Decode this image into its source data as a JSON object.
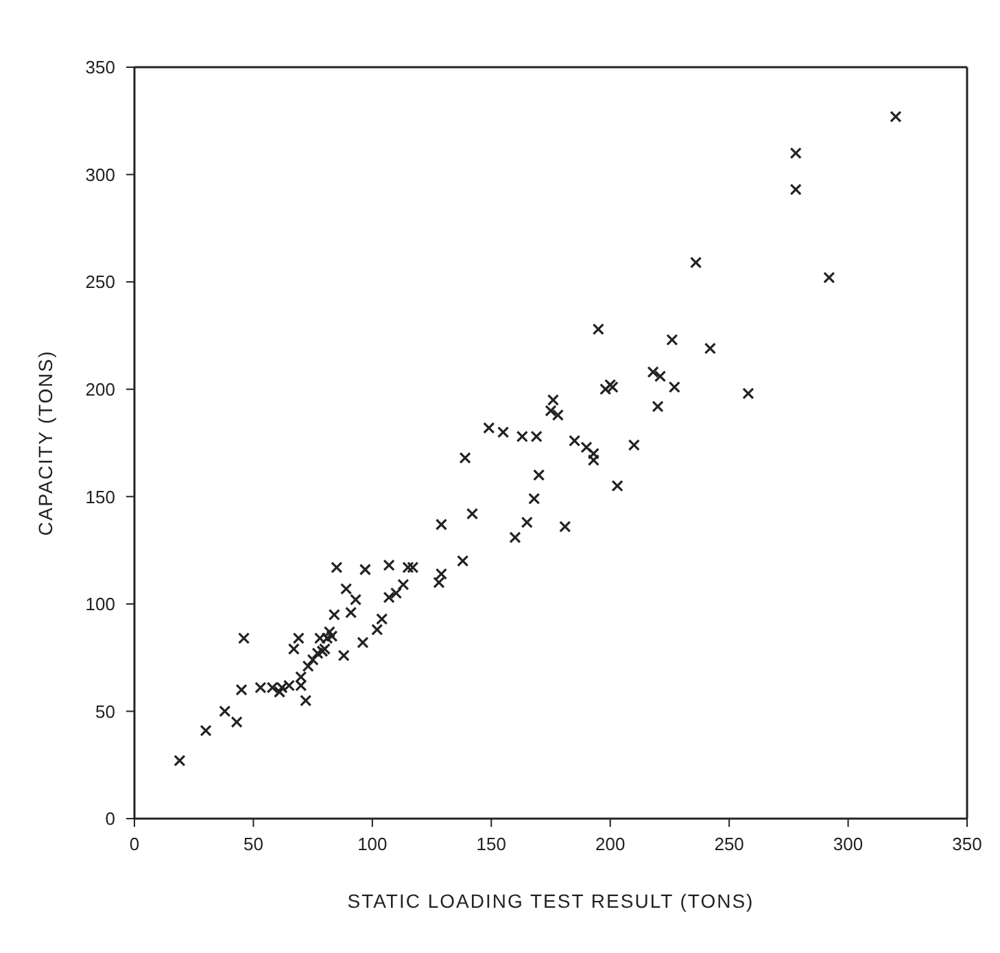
{
  "chart_data": {
    "type": "scatter",
    "xlabel": "STATIC LOADING TEST RESULT (TONS)",
    "ylabel": "CAPACITY (TONS)",
    "xlim": [
      0,
      350
    ],
    "ylim": [
      0,
      350
    ],
    "xticks": [
      0,
      50,
      100,
      150,
      200,
      250,
      300,
      350
    ],
    "yticks": [
      0,
      50,
      100,
      150,
      200,
      250,
      300,
      350
    ],
    "grid": false,
    "marker": "cross",
    "x": [
      19,
      30,
      38,
      43,
      45,
      46,
      53,
      58,
      61,
      62,
      65,
      67,
      69,
      70,
      70,
      72,
      73,
      75,
      77,
      78,
      79,
      80,
      81,
      82,
      83,
      84,
      85,
      88,
      89,
      91,
      93,
      96,
      97,
      102,
      104,
      107,
      107,
      110,
      113,
      115,
      117,
      128,
      129,
      129,
      138,
      139,
      142,
      149,
      155,
      160,
      163,
      165,
      168,
      169,
      170,
      175,
      176,
      178,
      181,
      185,
      190,
      193,
      193,
      195,
      198,
      200,
      201,
      203,
      210,
      218,
      220,
      221,
      226,
      227,
      236,
      242,
      258,
      278,
      278,
      292,
      320
    ],
    "series": [
      {
        "color": "#222222",
        "values": [
          27,
          41,
          50,
          45,
          60,
          84,
          61,
          61,
          59,
          61,
          62,
          79,
          84,
          66,
          62,
          55,
          71,
          74,
          77,
          84,
          78,
          79,
          84,
          87,
          85,
          95,
          117,
          76,
          107,
          96,
          102,
          82,
          116,
          88,
          93,
          103,
          118,
          105,
          109,
          117,
          117,
          110,
          114,
          137,
          120,
          168,
          142,
          182,
          180,
          131,
          178,
          138,
          149,
          178,
          160,
          190,
          195,
          188,
          136,
          176,
          173,
          170,
          167,
          228,
          200,
          202,
          201,
          155,
          174,
          208,
          192,
          206,
          223,
          201,
          259,
          219,
          198,
          310,
          293,
          252,
          327
        ]
      }
    ]
  }
}
